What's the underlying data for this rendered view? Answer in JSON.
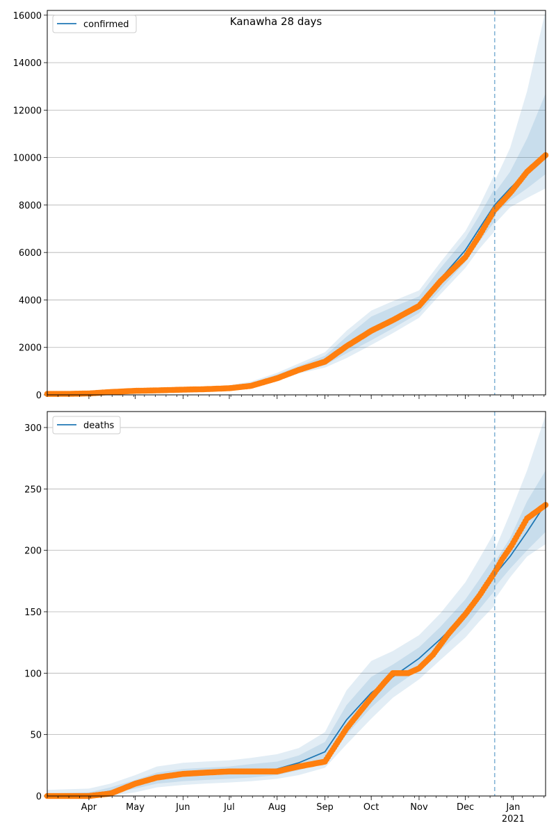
{
  "chart_data": [
    {
      "type": "line",
      "title": "Kanawha 28 days",
      "xlabel": "",
      "ylabel": "",
      "ylim": [
        0,
        16200
      ],
      "yticks": [
        0,
        2000,
        4000,
        6000,
        8000,
        10000,
        12000,
        14000,
        16000
      ],
      "grid": "horizontal",
      "legend_position": "top-left",
      "x_axis": {
        "start": "2020-03-05",
        "end": "2021-01-22",
        "tick_labels": [
          {
            "date": "2020-04-01",
            "label": "Apr"
          },
          {
            "date": "2020-05-01",
            "label": "May"
          },
          {
            "date": "2020-06-01",
            "label": "Jun"
          },
          {
            "date": "2020-07-01",
            "label": "Jul"
          },
          {
            "date": "2020-08-01",
            "label": "Aug"
          },
          {
            "date": "2020-09-01",
            "label": "Sep"
          },
          {
            "date": "2020-10-01",
            "label": "Oct"
          },
          {
            "date": "2020-11-01",
            "label": "Nov"
          },
          {
            "date": "2020-12-01",
            "label": "Dec"
          },
          {
            "date": "2021-01-01",
            "label": "Jan",
            "sublabel": "2021"
          }
        ],
        "show_labels": false
      },
      "forecast_start": "2020-12-20",
      "colors": {
        "model": "#1f77b4",
        "observed": "#ff7f0e",
        "band": "#1f77b4",
        "vline": "#1f77b4"
      },
      "series": [
        {
          "name": "confirmed",
          "role": "model",
          "x": [
            "2020-03-05",
            "2020-03-15",
            "2020-04-01",
            "2020-04-15",
            "2020-05-01",
            "2020-05-15",
            "2020-06-01",
            "2020-06-15",
            "2020-07-01",
            "2020-07-15",
            "2020-08-01",
            "2020-08-15",
            "2020-09-01",
            "2020-09-15",
            "2020-10-01",
            "2020-10-15",
            "2020-11-01",
            "2020-11-15",
            "2020-12-01",
            "2020-12-10",
            "2020-12-20"
          ],
          "values": [
            40,
            45,
            70,
            110,
            150,
            180,
            220,
            250,
            300,
            420,
            750,
            1100,
            1450,
            2100,
            2800,
            3250,
            3800,
            4900,
            6100,
            7000,
            8000
          ],
          "bands": [
            {
              "lower": [
                20,
                25,
                45,
                80,
                115,
                140,
                175,
                195,
                235,
                340,
                640,
                980,
                1250,
                1750,
                2300,
                2800,
                3450,
                4450,
                5600,
                6450,
                7300
              ],
              "upper": [
                60,
                65,
                95,
                140,
                185,
                220,
                265,
                305,
                365,
                500,
                860,
                1220,
                1650,
                2450,
                3300,
                3700,
                4150,
                5350,
                6600,
                7550,
                8700
              ]
            },
            {
              "lower": [
                10,
                15,
                35,
                65,
                95,
                115,
                150,
                170,
                205,
                300,
                580,
                900,
                1150,
                1550,
                2100,
                2600,
                3250,
                4250,
                5350,
                6150,
                6900
              ],
              "upper": [
                75,
                80,
                115,
                160,
                210,
                250,
                300,
                340,
                405,
                560,
                930,
                1320,
                1800,
                2700,
                3550,
                3950,
                4400,
                5600,
                6900,
                7950,
                9300
              ]
            }
          ]
        },
        {
          "name": "confirmed forecast",
          "role": "forecast",
          "x": [
            "2020-12-20",
            "2020-12-30",
            "2021-01-10",
            "2021-01-22"
          ],
          "values": [
            8000,
            8700,
            9400,
            10200
          ],
          "bands": [
            {
              "lower": [
                7600,
                8200,
                8700,
                9300
              ],
              "upper": [
                8500,
                9400,
                10800,
                12700
              ]
            },
            {
              "lower": [
                7200,
                7900,
                8300,
                8700
              ],
              "upper": [
                9000,
                10400,
                12800,
                16200
              ]
            }
          ]
        },
        {
          "name": "observed",
          "role": "observed",
          "x": [
            "2020-03-05",
            "2020-03-20",
            "2020-04-01",
            "2020-04-15",
            "2020-05-01",
            "2020-05-15",
            "2020-06-01",
            "2020-06-15",
            "2020-07-01",
            "2020-07-15",
            "2020-08-01",
            "2020-08-15",
            "2020-09-01",
            "2020-09-15",
            "2020-10-01",
            "2020-10-15",
            "2020-11-01",
            "2020-11-15",
            "2020-12-01",
            "2020-12-10",
            "2020-12-20",
            "2020-12-30",
            "2021-01-10",
            "2021-01-22"
          ],
          "values": [
            40,
            45,
            60,
            120,
            170,
            190,
            220,
            240,
            280,
            380,
            700,
            1050,
            1400,
            2050,
            2700,
            3150,
            3750,
            4800,
            5800,
            6700,
            7800,
            8500,
            9400,
            10100
          ]
        }
      ]
    },
    {
      "type": "line",
      "title": "",
      "xlabel": "",
      "ylabel": "",
      "ylim": [
        0,
        313
      ],
      "yticks": [
        0,
        50,
        100,
        150,
        200,
        250,
        300
      ],
      "grid": "horizontal",
      "legend_position": "top-left",
      "x_axis": {
        "start": "2020-03-05",
        "end": "2021-01-22",
        "tick_labels": [
          {
            "date": "2020-04-01",
            "label": "Apr"
          },
          {
            "date": "2020-05-01",
            "label": "May"
          },
          {
            "date": "2020-06-01",
            "label": "Jun"
          },
          {
            "date": "2020-07-01",
            "label": "Jul"
          },
          {
            "date": "2020-08-01",
            "label": "Aug"
          },
          {
            "date": "2020-09-01",
            "label": "Sep"
          },
          {
            "date": "2020-10-01",
            "label": "Oct"
          },
          {
            "date": "2020-11-01",
            "label": "Nov"
          },
          {
            "date": "2020-12-01",
            "label": "Dec"
          },
          {
            "date": "2021-01-01",
            "label": "Jan",
            "sublabel": "2021"
          }
        ],
        "show_labels": true
      },
      "forecast_start": "2020-12-20",
      "colors": {
        "model": "#1f77b4",
        "observed": "#ff7f0e",
        "band": "#1f77b4",
        "vline": "#1f77b4"
      },
      "series": [
        {
          "name": "deaths",
          "role": "model",
          "x": [
            "2020-03-05",
            "2020-04-01",
            "2020-04-15",
            "2020-05-01",
            "2020-05-15",
            "2020-06-01",
            "2020-06-15",
            "2020-07-01",
            "2020-07-15",
            "2020-08-01",
            "2020-08-15",
            "2020-09-01",
            "2020-09-15",
            "2020-10-01",
            "2020-10-15",
            "2020-11-01",
            "2020-11-15",
            "2020-12-01",
            "2020-12-10",
            "2020-12-20"
          ],
          "values": [
            0,
            1,
            4,
            9,
            14,
            17,
            18,
            19,
            20,
            22,
            27,
            36,
            62,
            84,
            97,
            112,
            128,
            148,
            163,
            180
          ],
          "bands": [
            {
              "lower": [
                0,
                0,
                2,
                6,
                10,
                12,
                13,
                14,
                15,
                17,
                21,
                28,
                50,
                72,
                88,
                103,
                119,
                138,
                152,
                167
              ],
              "upper": [
                2,
                3,
                7,
                13,
                19,
                22,
                23,
                24,
                26,
                28,
                33,
                44,
                74,
                97,
                107,
                121,
                138,
                160,
                176,
                195
              ]
            },
            {
              "lower": [
                0,
                0,
                0,
                3,
                7,
                9,
                10,
                11,
                12,
                14,
                17,
                23,
                42,
                63,
                80,
                95,
                111,
                129,
                142,
                155
              ],
              "upper": [
                5,
                6,
                10,
                17,
                24,
                27,
                28,
                29,
                31,
                34,
                39,
                52,
                86,
                110,
                118,
                131,
                149,
                174,
                193,
                215
              ]
            }
          ]
        },
        {
          "name": "deaths forecast",
          "role": "forecast",
          "x": [
            "2020-12-20",
            "2020-12-30",
            "2021-01-10",
            "2021-01-22"
          ],
          "values": [
            180,
            195,
            215,
            238
          ],
          "bands": [
            {
              "lower": [
                170,
                185,
                200,
                215
              ],
              "upper": [
                190,
                210,
                240,
                265
              ]
            },
            {
              "lower": [
                160,
                178,
                195,
                205
              ],
              "upper": [
                200,
                230,
                265,
                310
              ]
            }
          ]
        },
        {
          "name": "observed",
          "role": "observed",
          "x": [
            "2020-03-05",
            "2020-04-01",
            "2020-04-15",
            "2020-05-01",
            "2020-05-15",
            "2020-06-01",
            "2020-06-15",
            "2020-07-01",
            "2020-07-15",
            "2020-08-01",
            "2020-08-15",
            "2020-09-01",
            "2020-09-15",
            "2020-10-01",
            "2020-10-10",
            "2020-10-15",
            "2020-10-25",
            "2020-11-01",
            "2020-11-10",
            "2020-11-20",
            "2020-12-01",
            "2020-12-10",
            "2020-12-20",
            "2020-12-25",
            "2020-12-31",
            "2021-01-10",
            "2021-01-22"
          ],
          "values": [
            0,
            0,
            2,
            10,
            15,
            18,
            19,
            20,
            20,
            20,
            24,
            28,
            55,
            80,
            93,
            100,
            100,
            104,
            115,
            132,
            148,
            163,
            182,
            193,
            204,
            226,
            237
          ]
        }
      ]
    }
  ]
}
